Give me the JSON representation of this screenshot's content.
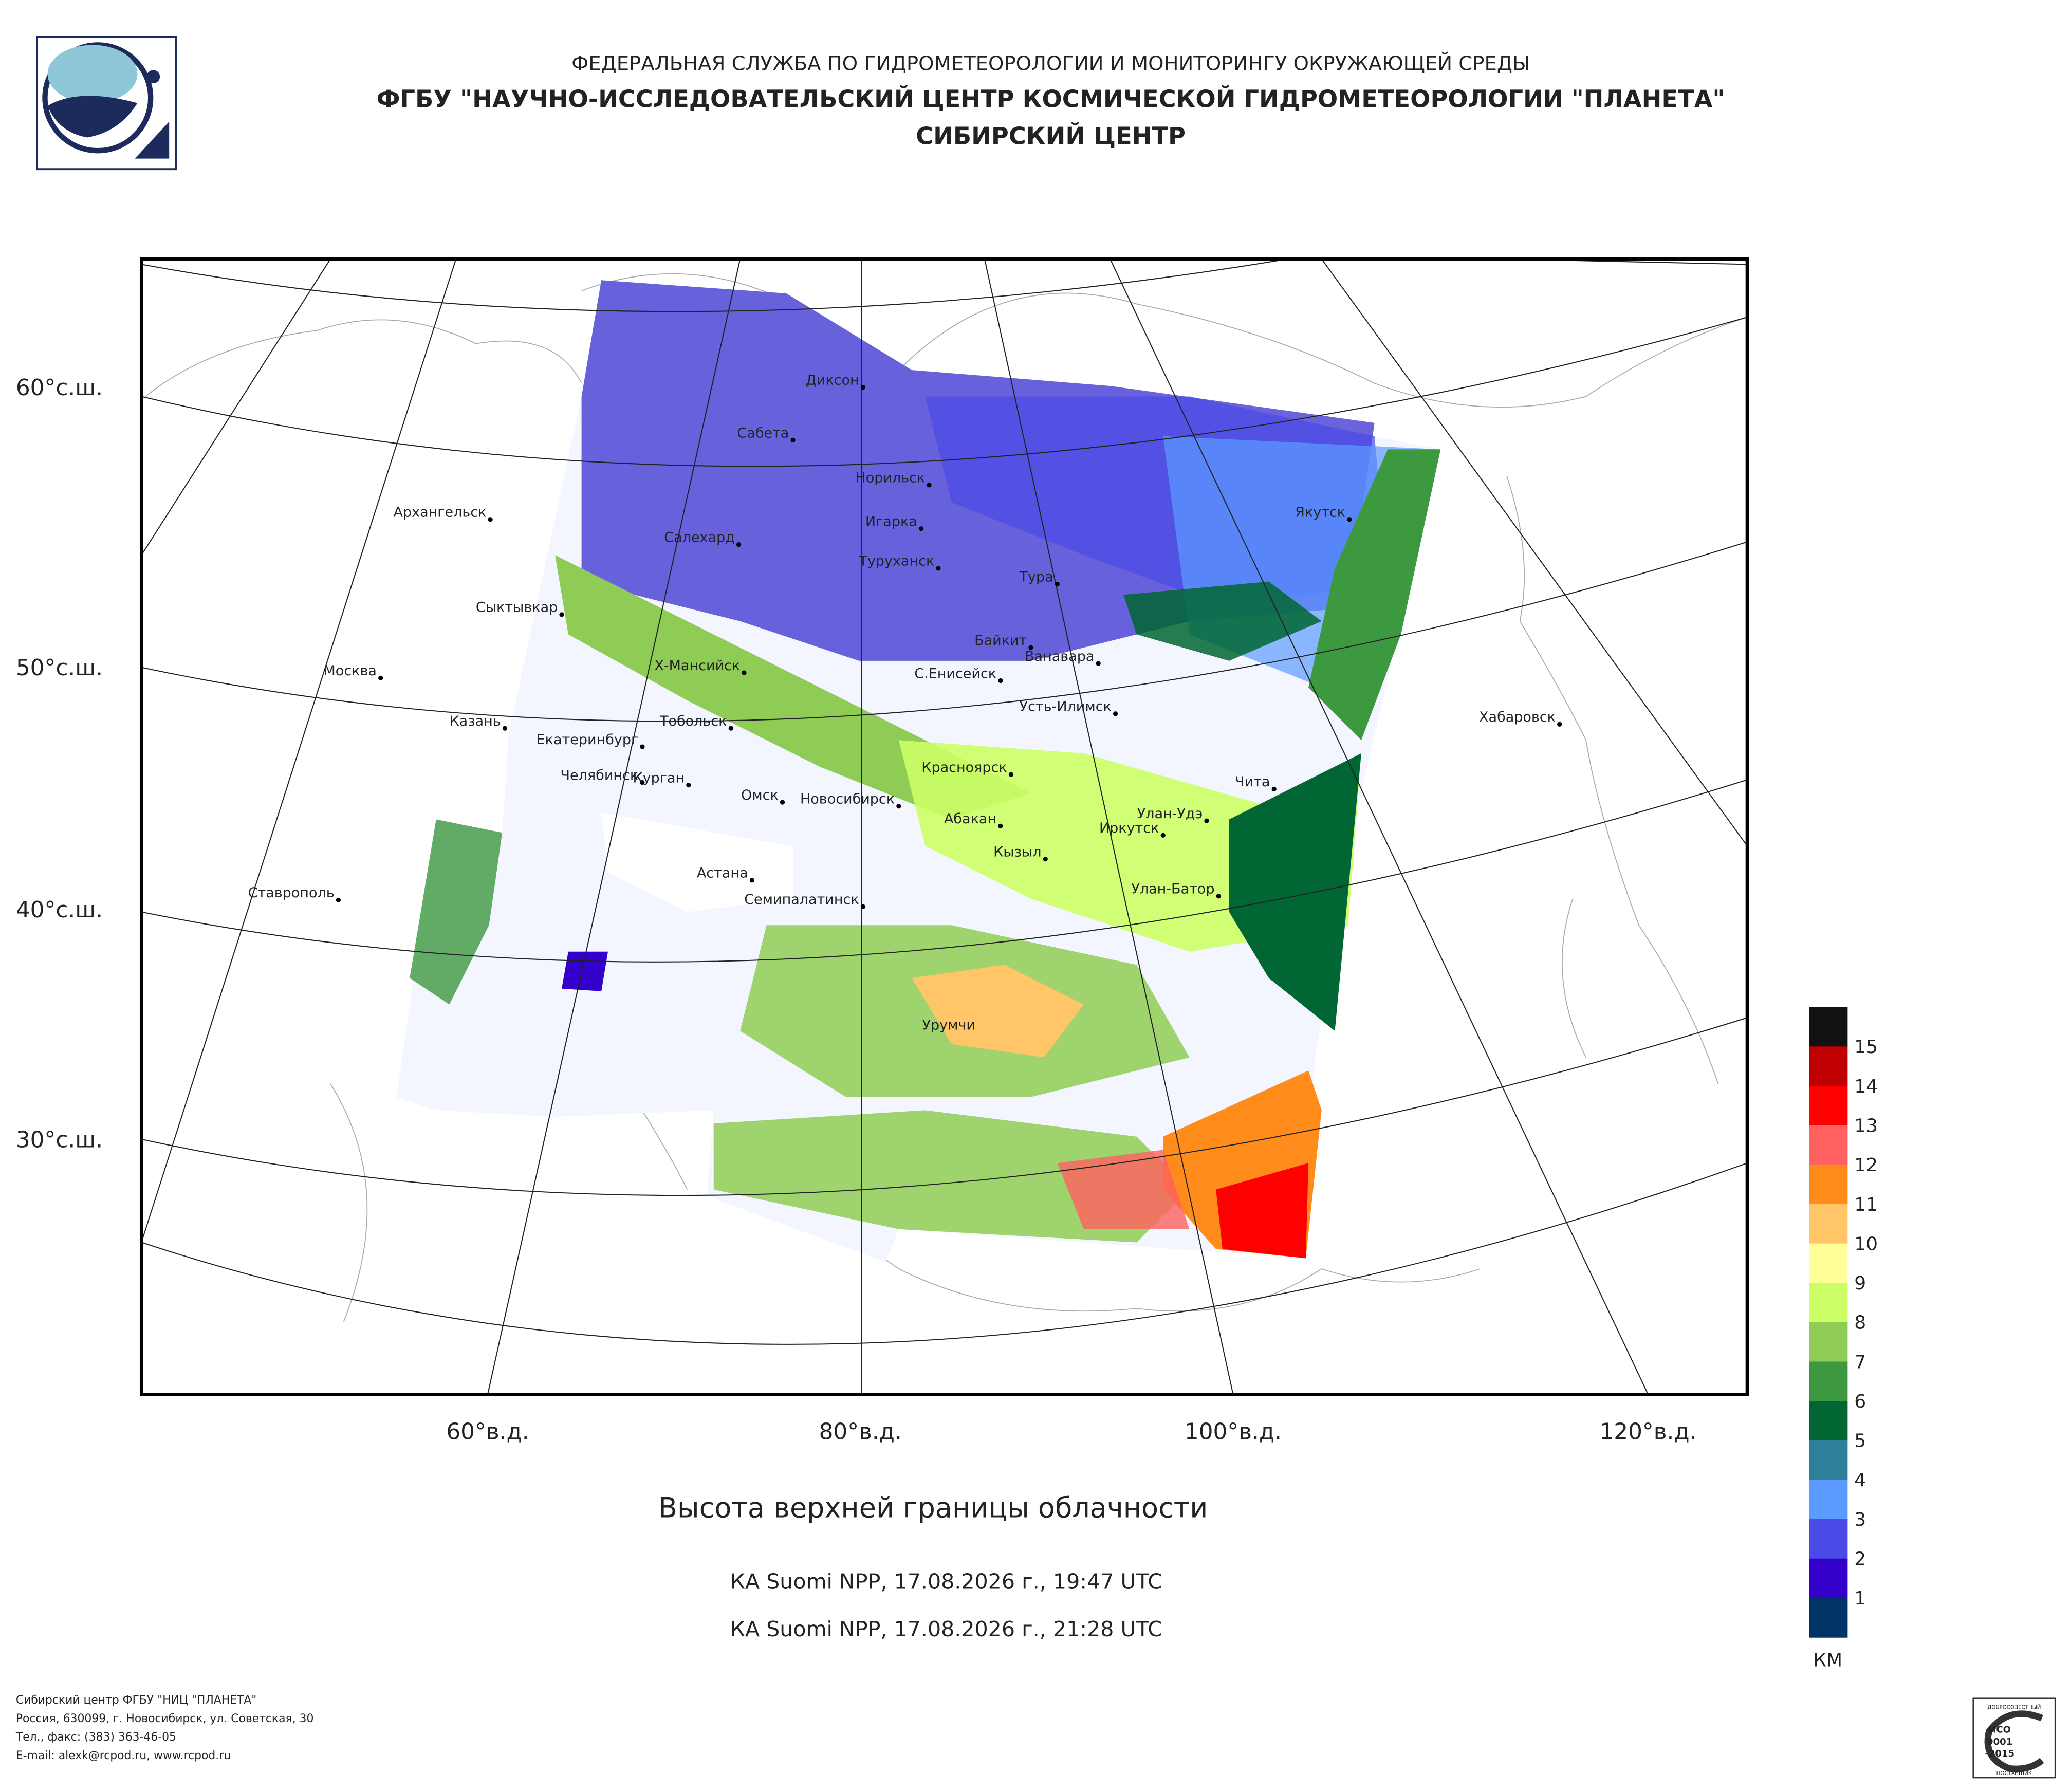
{
  "header": {
    "agency": "ФЕДЕРАЛЬНАЯ СЛУЖБА ПО ГИДРОМЕТЕОРОЛОГИИ И МОНИТОРИНГУ ОКРУЖАЮЩЕЙ СРЕДЫ",
    "institute": "ФГБУ \"НАУЧНО-ИССЛЕДОВАТЕЛЬСКИЙ ЦЕНТР КОСМИЧЕСКОЙ ГИДРОМЕТЕОРОЛОГИИ \"ПЛАНЕТА\"",
    "center": "СИБИРСКИЙ ЦЕНТР"
  },
  "map": {
    "lat_labels": [
      "60°с.ш.",
      "50°с.ш.",
      "40°с.ш.",
      "30°с.ш."
    ],
    "lon_labels": [
      "60°в.д.",
      "80°в.д.",
      "100°в.д.",
      "120°в.д."
    ],
    "cities": [
      "Диксон",
      "Сабета",
      "Норильск",
      "Архангельск",
      "Салехард",
      "Игарка",
      "Туруханск",
      "Якутск",
      "Тура",
      "Сыктывкар",
      "Байкит",
      "Ванавара",
      "Москва",
      "Х-Мансийск",
      "С.Енисейск",
      "Усть-Илимск",
      "Хабаровск",
      "Казань",
      "Тобольск",
      "Екатеринбург",
      "Челябинск",
      "Курган",
      "Красноярск",
      "Чита",
      "Омск",
      "Новосибирск",
      "Абакан",
      "Улан-Удэ",
      "Иркутск",
      "Кызыл",
      "Астана",
      "Ставрополь",
      "Семипалатинск",
      "Улан-Батор",
      "Урумчи"
    ]
  },
  "title": "Высота верхней границы облачности",
  "passes": [
    "КА Suomi NPP, 17.08.2026 г., 19:47 UTC",
    "КА Suomi NPP, 17.08.2026 г., 21:28 UTC"
  ],
  "legend": {
    "colors": [
      "#111111",
      "#c00000",
      "#ff0000",
      "#ff6060",
      "#ff8c1a",
      "#ffc566",
      "#ffff99",
      "#ccff66",
      "#8fcc55",
      "#3d9940",
      "#006633",
      "#2e7f99",
      "#5b9bff",
      "#4a4ae6",
      "#3300cc",
      "#003366"
    ],
    "labels": [
      "15",
      "14",
      "13",
      "12",
      "11",
      "10",
      "9",
      "8",
      "7",
      "6",
      "5",
      "4",
      "3",
      "2",
      "1"
    ],
    "unit": "КМ"
  },
  "footer": [
    "Сибирский центр ФГБУ \"НИЦ \"ПЛАНЕТА\"",
    "Россия, 630099, г. Новосибирск, ул. Советская, 30",
    "Тел., факс: (383) 363-46-05",
    "E-mail: alexk@rcpod.ru, www.rcpod.ru"
  ],
  "iso": {
    "top": "ДОБРОСОВЕСТНЫЙ",
    "mark": "ИСО",
    "number": "9001",
    "year": "-2015",
    "bottom": "ПОСТАВЩИК"
  }
}
